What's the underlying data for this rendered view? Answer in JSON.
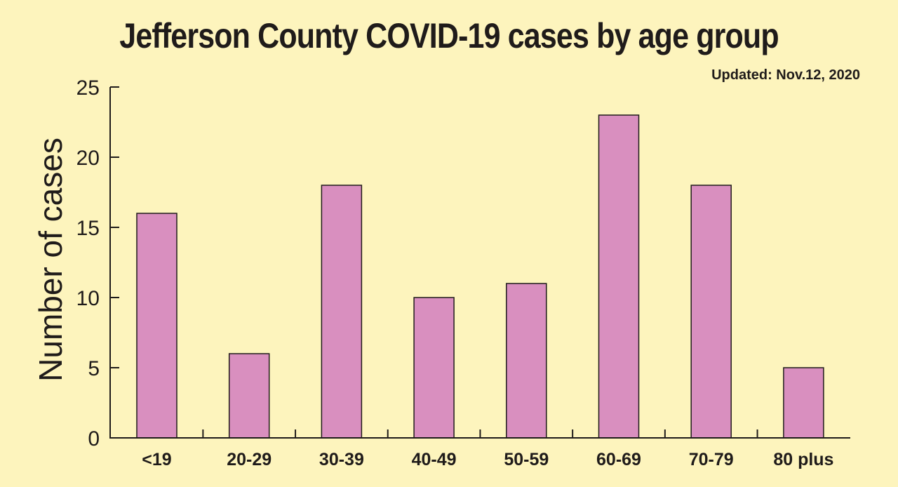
{
  "chart_data": {
    "type": "bar",
    "title": "Jefferson County COVID-19 cases by age group",
    "subtitle": "Updated: Nov.12, 2020",
    "xlabel": "",
    "ylabel": "Number of cases",
    "categories": [
      "<19",
      "20-29",
      "30-39",
      "40-49",
      "50-59",
      "60-69",
      "70-79",
      "80 plus"
    ],
    "values": [
      16,
      6,
      18,
      10,
      11,
      23,
      18,
      5
    ],
    "ylim": [
      0,
      25
    ],
    "yticks": [
      "0",
      "5",
      "10",
      "15",
      "20",
      "25"
    ],
    "grid": false,
    "colors": {
      "bar": "#d98fbf",
      "background": "#fdf4bd",
      "axis": "#1f1b1a"
    }
  }
}
